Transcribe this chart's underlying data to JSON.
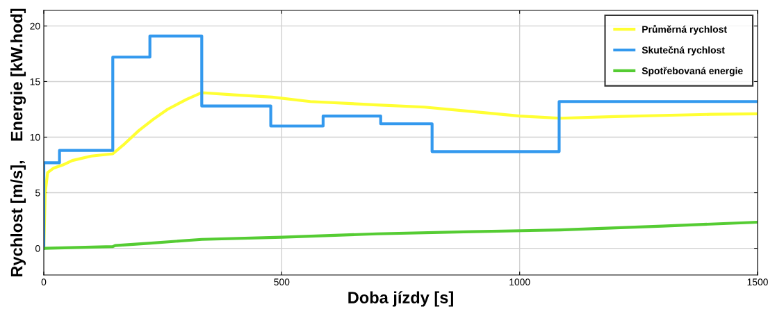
{
  "chart_data": {
    "type": "line",
    "xlabel": "Doba jízdy [s]",
    "ylabel": "Rychlost [m/s],    Energie [kW.hod]",
    "xlim": [
      0,
      1500
    ],
    "xticks": [
      0,
      500,
      1000,
      1500
    ],
    "ylim": [
      -2.4,
      21.4
    ],
    "yticks": [
      0,
      5,
      10,
      15,
      20
    ],
    "grid": true,
    "legend": "top right",
    "series": [
      {
        "name": "Průměrná rychlost",
        "color": "#ffff33",
        "x": [
          0,
          3,
          8,
          20,
          40,
          60,
          100,
          145,
          170,
          200,
          230,
          260,
          300,
          332,
          400,
          480,
          560,
          700,
          800,
          900,
          1000,
          1085,
          1200,
          1300,
          1400,
          1500
        ],
        "values": [
          0,
          5,
          6.8,
          7.2,
          7.5,
          7.9,
          8.3,
          8.5,
          9.4,
          10.6,
          11.6,
          12.5,
          13.4,
          14.0,
          13.8,
          13.6,
          13.2,
          12.9,
          12.7,
          12.3,
          11.9,
          11.7,
          11.85,
          11.95,
          12.05,
          12.1
        ]
      },
      {
        "name": "Skutečná rychlost",
        "type": "step",
        "color": "#3399ee",
        "x": [
          0,
          0,
          33,
          145,
          223,
          332,
          477,
          587,
          708,
          816,
          1083,
          1500
        ],
        "values": [
          0,
          7.7,
          8.8,
          17.2,
          19.1,
          12.8,
          11.0,
          11.9,
          11.2,
          8.7,
          13.2,
          13.2
        ]
      },
      {
        "name": "Spotřebovaná energie",
        "color": "#55cc33",
        "x": [
          0,
          145,
          150,
          220,
          332,
          500,
          700,
          900,
          1085,
          1300,
          1500
        ],
        "values": [
          0,
          0.15,
          0.25,
          0.45,
          0.8,
          1.0,
          1.3,
          1.5,
          1.65,
          2.0,
          2.35
        ]
      }
    ]
  }
}
